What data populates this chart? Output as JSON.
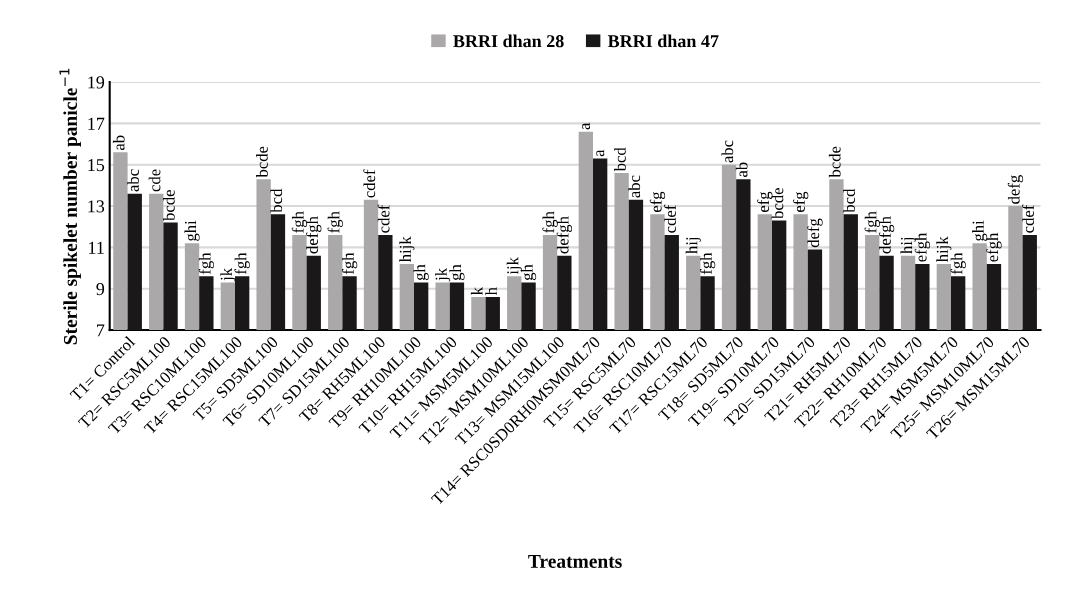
{
  "chart_data": {
    "type": "bar",
    "xlabel": "Treatments",
    "ylabel": "Sterile spikelet number panicle$^{−1}$",
    "categories": [
      "T1= Control",
      "T2= RSC5ML100",
      "T3= RSC10ML100",
      "T4= RSC15ML100",
      "T5= SD5ML100",
      "T6= SD10ML100",
      "T7= SD15ML100",
      "T8= RH5ML100",
      "T9= RH10ML100",
      "T10= RH15ML100",
      "T11= MSM5ML100",
      "T12= MSM10ML100",
      "T13= MSM15ML100",
      "T14= RSC0SD0RH0MSM0ML70",
      "T15= RSC5ML70",
      "T16= RSC10ML70",
      "T17= RSC15ML70",
      "T18= SD5ML70",
      "T19= SD10ML70",
      "T20= SD15ML70",
      "T21= RH5ML70",
      "T22= RH10ML70",
      "T23= RH15ML70",
      "T24= MSM5ML70",
      "T25= MSM10ML70",
      "T26= MSM15ML70"
    ],
    "series": [
      {
        "name": "BRRI dhan 28",
        "color": "#aaa8a8",
        "values": [
          15.6,
          13.6,
          11.2,
          9.3,
          14.3,
          11.6,
          11.6,
          13.3,
          10.2,
          9.3,
          8.6,
          9.6,
          11.6,
          16.6,
          14.6,
          12.6,
          10.6,
          15.0,
          12.6,
          12.6,
          14.3,
          11.6,
          10.6,
          10.2,
          11.2,
          13.0
        ],
        "value_labels": [
          "ab",
          "cde",
          "ghi",
          "jk",
          "bcde",
          "fgh",
          "fgh",
          "cdef",
          "hijk",
          "jk",
          "k",
          "ijk",
          "fgh",
          "a",
          "bcd",
          "efg",
          "hij",
          "abc",
          "efg",
          "efg",
          "bcde",
          "fgh",
          "hij",
          "hijk",
          "ghi",
          "defg"
        ]
      },
      {
        "name": "BRRI dhan 47",
        "color": "#1a1818",
        "values": [
          13.6,
          12.2,
          9.6,
          9.6,
          12.6,
          10.6,
          9.6,
          11.6,
          9.3,
          9.3,
          8.6,
          9.3,
          10.6,
          15.3,
          13.3,
          11.6,
          9.6,
          14.3,
          12.3,
          10.9,
          12.6,
          10.6,
          10.2,
          9.6,
          10.2,
          11.6
        ],
        "value_labels": [
          "abc",
          "bcde",
          "fgh",
          "fgh",
          "bcd",
          "defgh",
          "fgh",
          "cdef",
          "gh",
          "gh",
          "h",
          "gh",
          "defgh",
          "a",
          "abc",
          "cdef",
          "fgh",
          "ab",
          "bcde",
          "defg",
          "bcd",
          "defgh",
          "efgh",
          "fgh",
          "efgh",
          "cdef"
        ]
      }
    ],
    "ylim": [
      7,
      19
    ],
    "yticks": [
      7,
      9,
      11,
      13,
      15,
      17,
      19
    ],
    "grid": "y",
    "legend": "top"
  }
}
